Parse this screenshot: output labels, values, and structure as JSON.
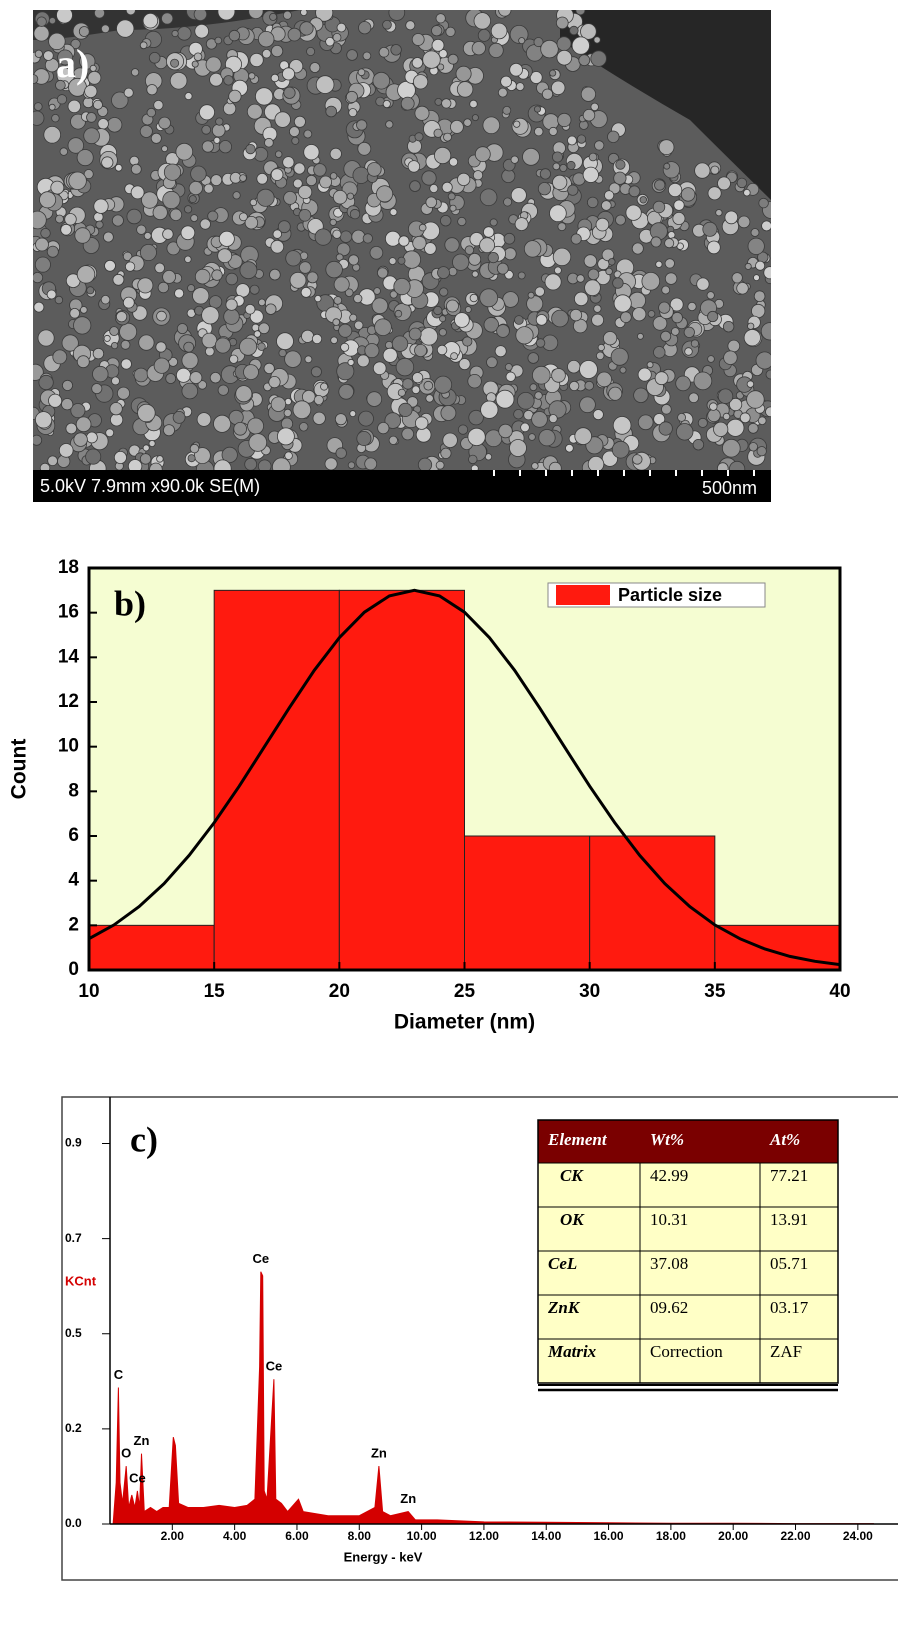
{
  "sem_image": {
    "label": "a)",
    "info": "5.0kV 7.9mm x90.0k SE(M)",
    "scale": "500nm"
  },
  "chart_data": [
    {
      "type": "histogram",
      "label": "b)",
      "x_label": "Diameter (nm)",
      "y_label": "Count",
      "bins": [
        10,
        15,
        20,
        25,
        30,
        35,
        40
      ],
      "series": [
        {
          "name": "Particle size",
          "color": "#ff1a0f",
          "values": [
            2,
            17,
            17,
            6,
            6,
            2
          ]
        }
      ],
      "fit": {
        "color": "#000000",
        "x": [
          10,
          11,
          12,
          13,
          14,
          15,
          16,
          17,
          18,
          19,
          20,
          21,
          22,
          23,
          24,
          25,
          26,
          27,
          28,
          29,
          30,
          31,
          32,
          33,
          34,
          35,
          36,
          37,
          38,
          39,
          40
        ],
        "values": [
          1.4,
          2.02,
          2.84,
          3.87,
          5.13,
          6.6,
          8.23,
          9.98,
          11.74,
          13.42,
          14.88,
          16.02,
          16.75,
          17,
          16.75,
          16.02,
          14.88,
          13.42,
          11.74,
          9.98,
          8.23,
          6.6,
          5.13,
          3.87,
          2.84,
          2.02,
          1.4,
          0.94,
          0.61,
          0.39,
          0.24
        ]
      },
      "background": "#f5fdd2",
      "xlim": [
        10,
        40
      ],
      "xticks": [
        10,
        15,
        20,
        25,
        30,
        35,
        40
      ],
      "ylim": [
        0,
        18
      ],
      "yticks": [
        0,
        2,
        4,
        6,
        8,
        10,
        12,
        14,
        16,
        18
      ],
      "legend": "upper right"
    },
    {
      "type": "area",
      "label": "c)",
      "x_label": "Energy - keV",
      "y_label": "KCnt",
      "color": "#d40000",
      "x": [
        0.1,
        0.2,
        0.27,
        0.32,
        0.4,
        0.52,
        0.6,
        0.7,
        0.8,
        0.88,
        0.95,
        1.01,
        1.1,
        1.3,
        1.5,
        1.7,
        1.9,
        2.03,
        2.1,
        2.2,
        2.5,
        3.0,
        3.5,
        4.0,
        4.4,
        4.65,
        4.8,
        4.84,
        4.9,
        4.95,
        5.04,
        5.2,
        5.26,
        5.32,
        5.5,
        5.7,
        6.05,
        6.2,
        7.0,
        8.0,
        8.5,
        8.63,
        8.75,
        9.0,
        9.57,
        9.8,
        10.5,
        12,
        14,
        16,
        18,
        20,
        22,
        24.5
      ],
      "values": [
        0,
        0.1,
        0.33,
        0.1,
        0.05,
        0.14,
        0.04,
        0.07,
        0.04,
        0.08,
        0.04,
        0.17,
        0.03,
        0.04,
        0.03,
        0.04,
        0.04,
        0.21,
        0.19,
        0.05,
        0.04,
        0.04,
        0.045,
        0.04,
        0.045,
        0.06,
        0.38,
        0.61,
        0.6,
        0.08,
        0.06,
        0.27,
        0.35,
        0.06,
        0.05,
        0.03,
        0.06,
        0.03,
        0.02,
        0.02,
        0.04,
        0.14,
        0.03,
        0.02,
        0.03,
        0.01,
        0.01,
        0.005,
        0.004,
        0.003,
        0.002,
        0.002,
        0.001,
        0.001
      ],
      "xlim": [
        0,
        25
      ],
      "xticks": [
        {
          "value": 2,
          "label": "2.00"
        },
        {
          "value": 4,
          "label": "4.00"
        },
        {
          "value": 6,
          "label": "6.00"
        },
        {
          "value": 8,
          "label": "8.00"
        },
        {
          "value": 10,
          "label": "10.00"
        },
        {
          "value": 12,
          "label": "12.00"
        },
        {
          "value": 14,
          "label": "14.00"
        },
        {
          "value": 16,
          "label": "16.00"
        },
        {
          "value": 18,
          "label": "18.00"
        },
        {
          "value": 20,
          "label": "20.00"
        },
        {
          "value": 22,
          "label": "22.00"
        },
        {
          "value": 24,
          "label": "24.00"
        }
      ],
      "ylim": [
        0,
        1.03
      ],
      "yticks": [
        {
          "value": 0,
          "label": "0.0"
        },
        {
          "value": 0.23,
          "label": "0.2"
        },
        {
          "value": 0.46,
          "label": "0.5"
        },
        {
          "value": 0.69,
          "label": "0.7"
        },
        {
          "value": 0.92,
          "label": "0.9"
        }
      ],
      "annotations": [
        {
          "text": "C",
          "x": 0.27
        },
        {
          "text": "O",
          "x": 0.52
        },
        {
          "text": "Ce",
          "x": 0.88
        },
        {
          "text": "Zn",
          "x": 1.01
        },
        {
          "text": "Ce",
          "x": 4.84
        },
        {
          "text": "Ce",
          "x": 5.26
        },
        {
          "text": "Zn",
          "x": 8.63
        },
        {
          "text": "Zn",
          "x": 9.57
        }
      ],
      "table": {
        "header": [
          "Element",
          "Wt%",
          "At%"
        ],
        "rows": [
          [
            "CK",
            "42.99",
            "77.21"
          ],
          [
            "OK",
            "10.31",
            "13.91"
          ],
          [
            "CeL",
            "37.08",
            "05.71"
          ],
          [
            "ZnK",
            "09.62",
            "03.17"
          ],
          [
            "Matrix",
            "Correction",
            "ZAF"
          ]
        ]
      }
    }
  ]
}
